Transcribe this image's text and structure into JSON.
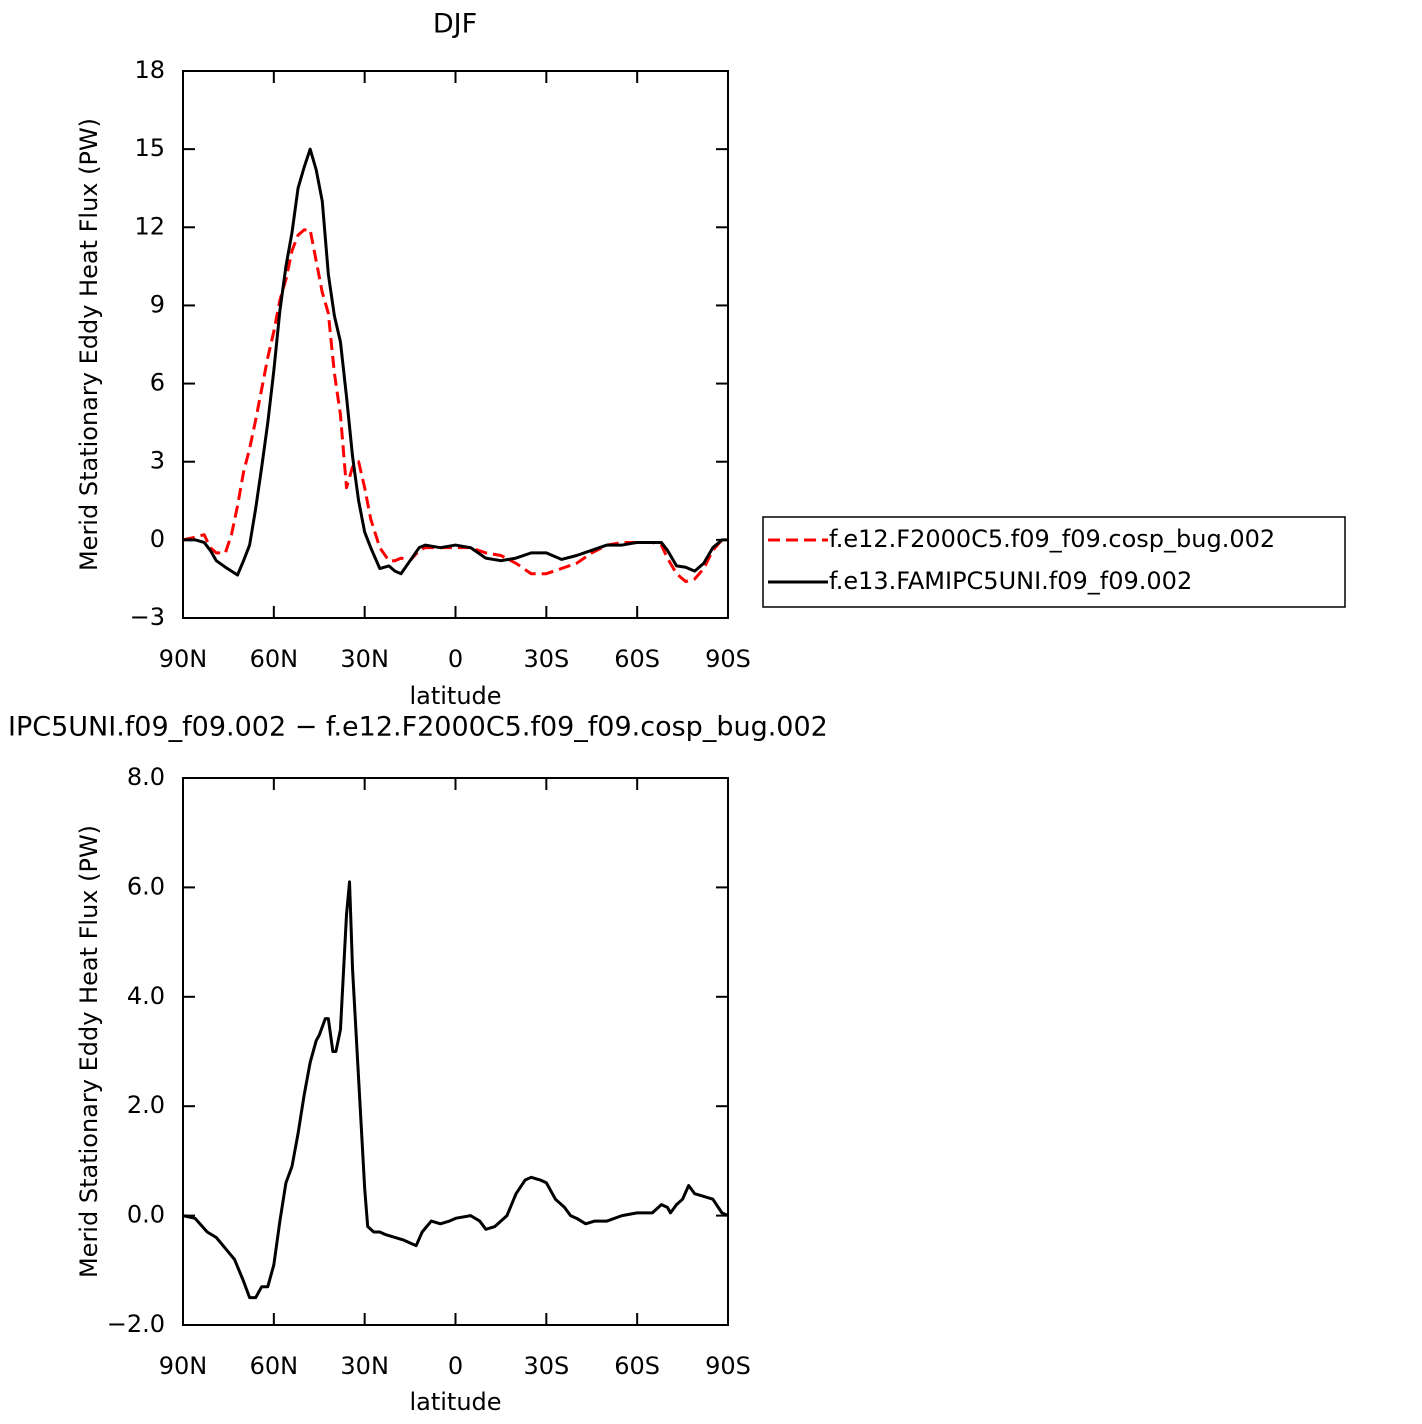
{
  "chart_data": [
    {
      "type": "line",
      "title": "DJF",
      "xlabel": "latitude",
      "ylabel": "Merid Stationary Eddy Heat Flux (PW)",
      "xlim": [
        90,
        -90
      ],
      "xticks": [
        {
          "value": 90,
          "label": "90N"
        },
        {
          "value": 60,
          "label": "60N"
        },
        {
          "value": 30,
          "label": "30N"
        },
        0,
        {
          "value": -30,
          "label": "30S"
        },
        {
          "value": -60,
          "label": "60S"
        },
        {
          "value": -90,
          "label": "90S"
        }
      ],
      "ylim": [
        -3,
        18
      ],
      "yticks": [
        {
          "value": -3,
          "label": "−3"
        },
        0,
        3,
        6,
        9,
        12,
        15,
        18
      ],
      "legend": "right",
      "x": [
        90,
        86,
        83,
        81,
        79,
        76,
        74,
        72,
        70,
        68,
        66,
        64,
        62,
        60,
        58,
        56,
        54,
        52,
        50,
        48,
        46,
        44,
        42,
        40,
        38,
        36,
        34,
        32,
        30,
        28,
        25,
        22,
        20,
        18,
        15,
        12,
        10,
        5,
        0,
        -5,
        -10,
        -15,
        -20,
        -25,
        -30,
        -35,
        -40,
        -45,
        -50,
        -55,
        -60,
        -65,
        -68,
        -70,
        -73,
        -76,
        -79,
        -82,
        -85,
        -88,
        -90
      ],
      "series": [
        {
          "name": "f.e12.F2000C5.f09_f09.cosp_bug.002",
          "color": "#ff0000",
          "style": "dashed",
          "values": [
            0,
            0.1,
            0.2,
            -0.3,
            -0.5,
            -0.5,
            0.2,
            1.3,
            2.6,
            3.5,
            4.6,
            5.8,
            7.0,
            8.0,
            9.2,
            10.0,
            11.1,
            11.7,
            11.9,
            11.9,
            10.7,
            9.5,
            8.7,
            6.4,
            4.8,
            2.0,
            2.8,
            3.0,
            2.0,
            0.8,
            -0.3,
            -0.8,
            -0.8,
            -0.7,
            -0.8,
            -0.4,
            -0.3,
            -0.3,
            -0.3,
            -0.3,
            -0.5,
            -0.6,
            -0.9,
            -1.3,
            -1.3,
            -1.1,
            -0.9,
            -0.5,
            -0.2,
            -0.1,
            -0.1,
            -0.1,
            -0.2,
            -0.7,
            -1.3,
            -1.6,
            -1.5,
            -1.1,
            -0.4,
            0,
            0
          ]
        },
        {
          "name": "f.e13.FAMIPC5UNI.f09_f09.002",
          "color": "#000000",
          "style": "solid",
          "values": [
            0,
            0,
            -0.1,
            -0.4,
            -0.8,
            -1.05,
            -1.2,
            -1.35,
            -0.8,
            -0.2,
            1.2,
            2.8,
            4.5,
            6.5,
            8.8,
            10.5,
            11.8,
            13.5,
            14.3,
            15.0,
            14.2,
            13.0,
            10.2,
            8.6,
            7.6,
            5.5,
            3.2,
            1.5,
            0.3,
            -0.3,
            -1.1,
            -1.0,
            -1.2,
            -1.3,
            -0.8,
            -0.3,
            -0.2,
            -0.3,
            -0.2,
            -0.3,
            -0.7,
            -0.8,
            -0.7,
            -0.5,
            -0.5,
            -0.75,
            -0.6,
            -0.4,
            -0.2,
            -0.2,
            -0.1,
            -0.1,
            -0.1,
            -0.4,
            -1.0,
            -1.05,
            -1.2,
            -0.9,
            -0.3,
            0,
            0
          ]
        }
      ]
    },
    {
      "type": "line",
      "title": "IPC5UNI.f09_f09.002 − f.e12.F2000C5.f09_f09.cosp_bug.002",
      "xlabel": "latitude",
      "ylabel": "Merid Stationary Eddy Heat Flux (PW)",
      "xlim": [
        90,
        -90
      ],
      "xticks": [
        {
          "value": 90,
          "label": "90N"
        },
        {
          "value": 60,
          "label": "60N"
        },
        {
          "value": 30,
          "label": "30N"
        },
        0,
        {
          "value": -30,
          "label": "30S"
        },
        {
          "value": -60,
          "label": "60S"
        },
        {
          "value": -90,
          "label": "90S"
        }
      ],
      "ylim": [
        -2,
        8
      ],
      "yticks": [
        {
          "value": -2,
          "label": "−2.0"
        },
        {
          "value": 0,
          "label": "0.0"
        },
        {
          "value": 2,
          "label": "2.0"
        },
        {
          "value": 4,
          "label": "4.0"
        },
        {
          "value": 6,
          "label": "6.0"
        },
        {
          "value": 8,
          "label": "8.0"
        }
      ],
      "x": [
        90,
        86,
        82,
        79,
        76,
        73,
        70,
        68,
        66,
        64,
        62,
        60,
        58,
        56,
        54,
        52,
        50,
        48,
        46,
        45,
        43,
        42,
        40.5,
        39.5,
        38,
        36,
        35,
        34,
        32,
        30,
        29,
        27,
        25,
        23,
        20,
        17,
        15,
        13,
        11,
        8,
        5,
        2,
        0,
        -5,
        -8,
        -10,
        -13,
        -17,
        -20,
        -23,
        -25,
        -28,
        -30,
        -33,
        -36,
        -38,
        -40,
        -43,
        -46,
        -50,
        -55,
        -60,
        -65,
        -68,
        -70,
        -71,
        -73,
        -75,
        -77,
        -79,
        -82,
        -85,
        -88,
        -90
      ],
      "series": [
        {
          "color": "#000000",
          "style": "solid",
          "values": [
            0,
            -0.05,
            -0.3,
            -0.4,
            -0.6,
            -0.8,
            -1.2,
            -1.5,
            -1.5,
            -1.3,
            -1.3,
            -0.9,
            -0.1,
            0.6,
            0.9,
            1.5,
            2.2,
            2.8,
            3.2,
            3.3,
            3.6,
            3.6,
            3.0,
            3.0,
            3.4,
            5.5,
            6.1,
            4.5,
            2.5,
            0.5,
            -0.2,
            -0.3,
            -0.3,
            -0.35,
            -0.4,
            -0.45,
            -0.5,
            -0.55,
            -0.3,
            -0.1,
            -0.15,
            -0.1,
            -0.05,
            0.0,
            -0.1,
            -0.25,
            -0.2,
            0.0,
            0.4,
            0.65,
            0.7,
            0.65,
            0.6,
            0.3,
            0.15,
            0.0,
            -0.05,
            -0.15,
            -0.1,
            -0.1,
            0.0,
            0.05,
            0.05,
            0.2,
            0.15,
            0.05,
            0.2,
            0.3,
            0.55,
            0.4,
            0.35,
            0.3,
            0.05,
            0
          ]
        }
      ]
    }
  ]
}
